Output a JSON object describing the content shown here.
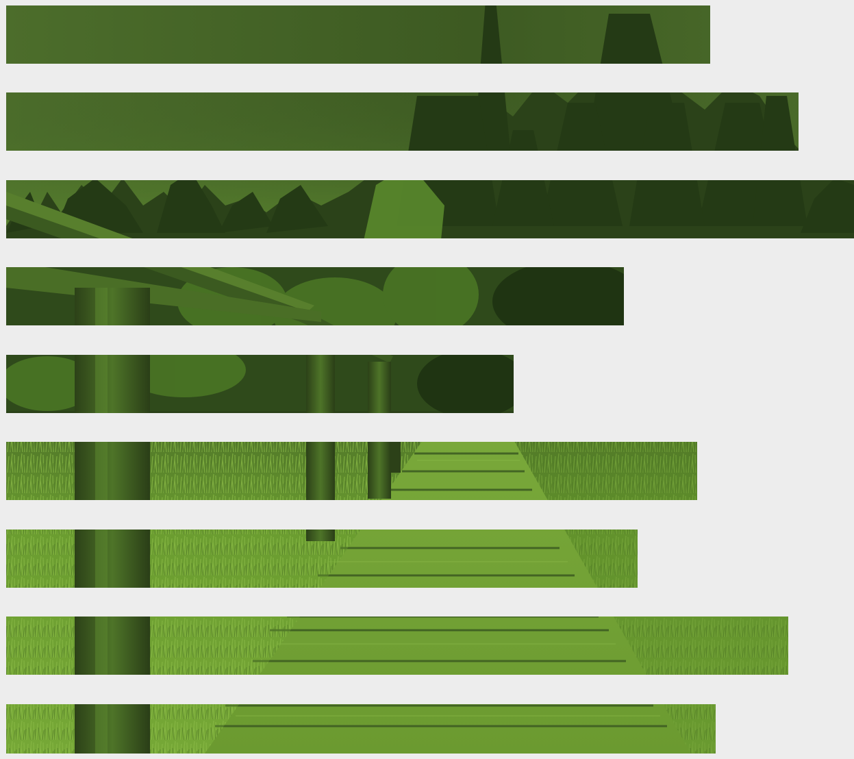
{
  "image": {
    "subject": "",
    "tint_color": "#6a9a2e",
    "background_color": "#ededed",
    "stripe_count": 9
  }
}
